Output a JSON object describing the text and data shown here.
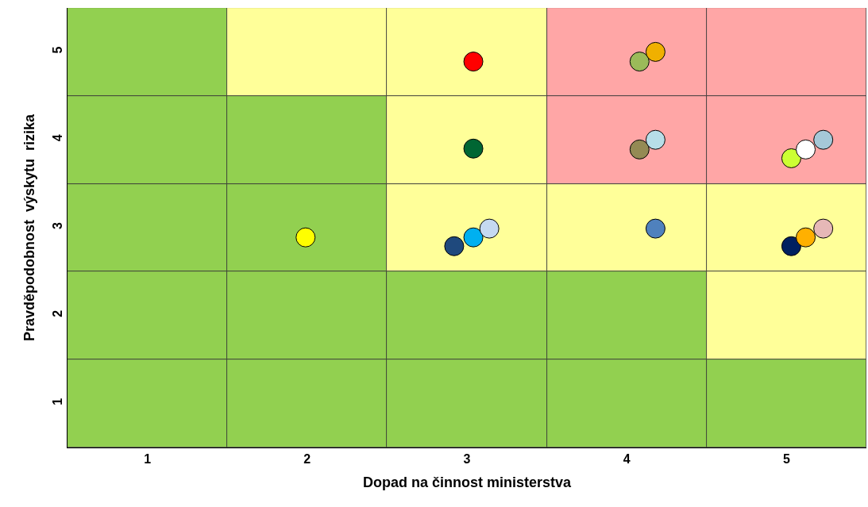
{
  "chart_data": {
    "type": "bar",
    "xlabel": "Dopad na činnost ministerstva",
    "ylabel": "Pravděpodobnost  výskytu  rizika",
    "xlim": [
      0.5,
      5.5
    ],
    "ylim": [
      0.5,
      5.5
    ],
    "xticks": [
      1,
      2,
      3,
      4,
      5
    ],
    "yticks": [
      1,
      2,
      3,
      4,
      5
    ],
    "marker": "circle",
    "series": [
      {
        "x": [
          1,
          2,
          3,
          4,
          5
        ],
        "base": [
          0.5,
          0.5,
          0.5,
          0.5,
          0.5
        ],
        "values": [
          1,
          1,
          1,
          1,
          1
        ],
        "colors": [
          "#92d050",
          "#92d050",
          "#92d050",
          "#92d050",
          "#92d050"
        ]
      },
      {
        "x": [
          1,
          2,
          3,
          4,
          5
        ],
        "base": [
          1.5,
          1.5,
          1.5,
          1.5,
          1.5
        ],
        "values": [
          1,
          1,
          1,
          1,
          1
        ],
        "colors": [
          "#92d050",
          "#92d050",
          "#92d050",
          "#92d050",
          "#ffff99"
        ]
      },
      {
        "x": [
          1,
          2,
          3,
          4,
          5
        ],
        "base": [
          2.5,
          2.5,
          2.5,
          2.5,
          2.5
        ],
        "values": [
          1,
          1,
          1,
          1,
          1
        ],
        "colors": [
          "#92d050",
          "#92d050",
          "#ffff99",
          "#ffff99",
          "#ffff99"
        ]
      },
      {
        "x": [
          1,
          2,
          3,
          4,
          5
        ],
        "base": [
          3.5,
          3.5,
          3.5,
          3.5,
          3.5
        ],
        "values": [
          1,
          1,
          1,
          1,
          1
        ],
        "colors": [
          "#92d050",
          "#92d050",
          "#ffff99",
          "#ffa6a6",
          "#ffa6a6"
        ]
      },
      {
        "x": [
          1,
          2,
          3,
          4,
          5
        ],
        "base": [
          4.5,
          4.5,
          4.5,
          4.5,
          4.5
        ],
        "values": [
          1,
          1,
          1,
          1,
          1
        ],
        "colors": [
          "#92d050",
          "#ffff99",
          "#ffff99",
          "#ffa6a6",
          "#ffa6a6"
        ]
      },
      {
        "type": "scatter",
        "x": [
          3.04,
          3.04,
          1.99,
          4.08,
          4.18,
          4.08,
          4.18,
          5.03,
          5.12,
          5.23,
          2.92,
          3.04,
          3.14,
          4.18,
          5.03,
          5.12,
          5.23
        ],
        "values": [
          4.89,
          3.9,
          2.89,
          4.89,
          5.0,
          3.89,
          4.0,
          3.79,
          3.89,
          4.0,
          2.79,
          2.89,
          2.99,
          2.99,
          2.79,
          2.89,
          2.99
        ],
        "colors": [
          "#ff0000",
          "#006633",
          "#ffff00",
          "#9bbb59",
          "#f0b000",
          "#948a54",
          "#b7dee8",
          "#ccff33",
          "#ffffff",
          "#a5c8d8",
          "#1f497d",
          "#00b0f0",
          "#c5d9f1",
          "#4f81bd",
          "#002060",
          "#ffb000",
          "#e6b8b7"
        ]
      }
    ]
  }
}
